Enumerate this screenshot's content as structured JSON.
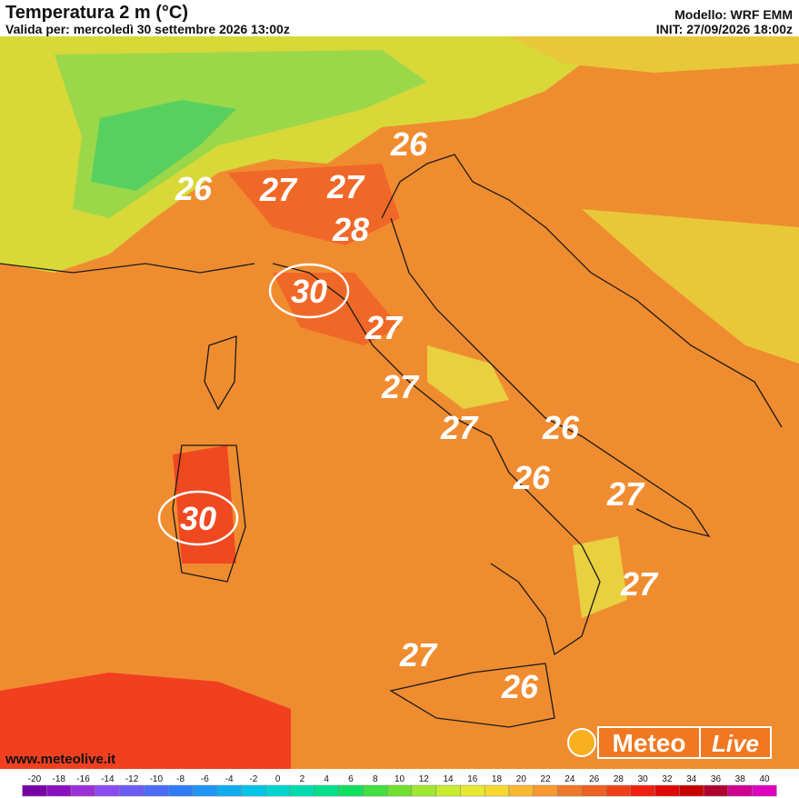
{
  "header": {
    "title": "Temperatura 2 m (°C)",
    "valid": "Valida per: mercoledì 30 settembre 2026 13:00z",
    "model": "Modello: WRF EMM",
    "init": "INIT: 27/09/2026 18:00z"
  },
  "labels": [
    {
      "text": 26
    },
    {
      "text": 26
    },
    {
      "text": 27
    },
    {
      "text": 27
    },
    {
      "text": 28
    },
    {
      "text": 30,
      "circled": true
    },
    {
      "text": 27
    },
    {
      "text": 27
    },
    {
      "text": 27
    },
    {
      "text": 26
    },
    {
      "text": 26
    },
    {
      "text": 27
    },
    {
      "text": 30,
      "circled": true
    },
    {
      "text": 27
    },
    {
      "text": 27
    },
    {
      "text": 26
    }
  ],
  "watermark": "www.meteolive.it",
  "logo": {
    "left": "Meteo",
    "right": "Live"
  },
  "colorbar": {
    "ticks": [
      -20,
      -18,
      -16,
      -14,
      -12,
      -10,
      -8,
      -6,
      -4,
      -2,
      0,
      2,
      4,
      6,
      8,
      10,
      12,
      14,
      16,
      18,
      20,
      22,
      24,
      26,
      28,
      30,
      32,
      34,
      36,
      38,
      40
    ],
    "colors": [
      "#7a00a8",
      "#8a10c0",
      "#9b30d8",
      "#8a4cf0",
      "#6a5cf5",
      "#4a6cf8",
      "#2f7cf8",
      "#1f95f5",
      "#10aef0",
      "#00c4e8",
      "#00d6d0",
      "#00dcae",
      "#00e08a",
      "#10e060",
      "#40e040",
      "#70e030",
      "#a0e830",
      "#c8ec30",
      "#e8e830",
      "#f8d830",
      "#f8b830",
      "#f89830",
      "#f07828",
      "#ee6020",
      "#f04018",
      "#f02010",
      "#e00808",
      "#c80000",
      "#b00030",
      "#d00090",
      "#e000c0"
    ]
  }
}
